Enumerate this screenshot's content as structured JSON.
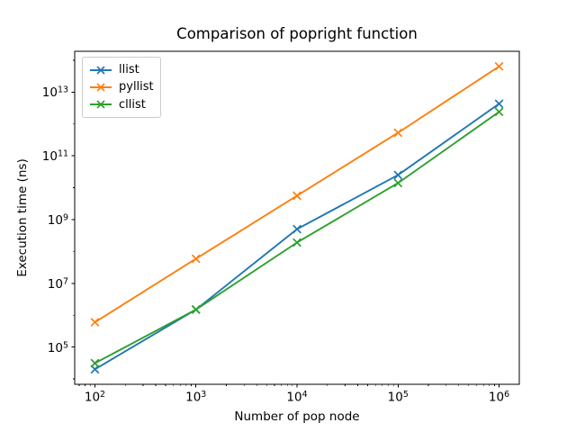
{
  "figure": {
    "background_color": "#ffffff",
    "spine_color": "#000000"
  },
  "chart_data": {
    "type": "line",
    "title": "Comparison of popright function",
    "xlabel": "Number of pop node",
    "ylabel": "Execution time (ns)",
    "x_scale": "log",
    "y_scale": "log",
    "grid": false,
    "legend_position": "upper left",
    "x": [
      100,
      1000,
      10000,
      100000,
      1000000
    ],
    "series": [
      {
        "name": "llist",
        "color": "#1f77b4",
        "marker": "x",
        "values": [
          20000,
          1500000,
          500000000,
          25000000000,
          4300000000000
        ]
      },
      {
        "name": "pyllist",
        "color": "#ff7f0e",
        "marker": "x",
        "values": [
          600000,
          59000000,
          5600000000,
          530000000000,
          64000000000000
        ]
      },
      {
        "name": "cllist",
        "color": "#2ca02c",
        "marker": "x",
        "values": [
          31000,
          1500000,
          190000000,
          14000000000,
          2400000000000
        ]
      }
    ],
    "xtick_exponents": [
      2,
      3,
      4,
      5,
      6
    ],
    "ytick_exponents": [
      5,
      7,
      9,
      11,
      13
    ],
    "xlim_log": [
      1.8,
      6.2
    ],
    "ylim_log": [
      3.83,
      14.28
    ]
  }
}
